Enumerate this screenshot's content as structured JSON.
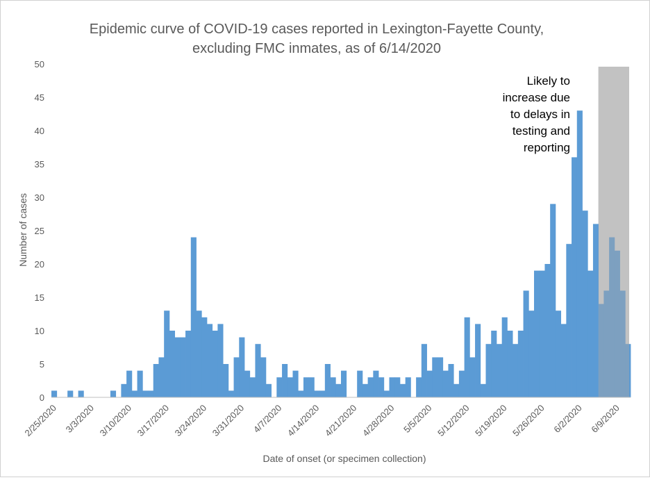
{
  "chart_data": {
    "type": "bar",
    "title_line1": "Epidemic curve of COVID-19 cases reported in Lexington-Fayette County,",
    "title_line2": "excluding FMC inmates, as of 6/14/2020",
    "xlabel": "Date of onset (or specimen collection)",
    "ylabel": "Number of cases",
    "ylim": [
      0,
      50
    ],
    "y_ticks": [
      0,
      5,
      10,
      15,
      20,
      25,
      30,
      35,
      40,
      45,
      50
    ],
    "x_start": "2/25/2020",
    "x_tick_labels": [
      "2/25/2020",
      "3/3/2020",
      "3/10/2020",
      "3/17/2020",
      "3/24/2020",
      "3/31/2020",
      "4/7/2020",
      "4/14/2020",
      "4/21/2020",
      "4/28/2020",
      "5/5/2020",
      "5/12/2020",
      "5/19/2020",
      "5/26/2020",
      "6/2/2020",
      "6/9/2020"
    ],
    "bar_color": "#5b9bd5",
    "values": [
      1,
      0,
      0,
      1,
      0,
      1,
      0,
      0,
      0,
      0,
      0,
      1,
      0,
      2,
      4,
      1,
      4,
      1,
      1,
      5,
      6,
      13,
      10,
      9,
      9,
      10,
      24,
      13,
      12,
      11,
      10,
      11,
      5,
      1,
      6,
      9,
      4,
      3,
      8,
      6,
      2,
      0,
      3,
      5,
      3,
      4,
      1,
      3,
      3,
      1,
      1,
      5,
      3,
      2,
      4,
      0,
      0,
      4,
      2,
      3,
      4,
      3,
      1,
      3,
      3,
      2,
      3,
      0,
      3,
      8,
      4,
      6,
      6,
      4,
      5,
      2,
      4,
      12,
      6,
      11,
      2,
      8,
      10,
      8,
      12,
      10,
      8,
      10,
      16,
      13,
      19,
      19,
      20,
      29,
      13,
      11,
      23,
      36,
      43,
      28,
      19,
      26,
      14,
      16,
      24,
      22,
      16,
      8
    ],
    "annotation": [
      "Likely to",
      "increase due",
      "to delays in",
      "testing and",
      "reporting"
    ],
    "shaded_from": "6/6/2020",
    "shaded_color": "#bfbfbf"
  }
}
